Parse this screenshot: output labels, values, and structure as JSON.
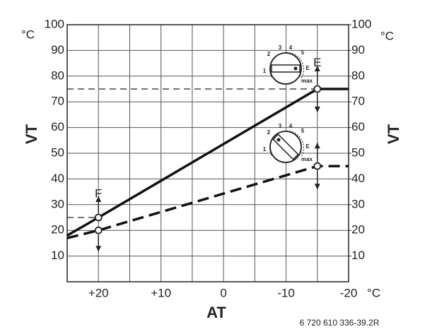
{
  "chart_data": {
    "type": "line",
    "x_label": "AT",
    "y_label": "VT",
    "y2_label": "VT",
    "y_unit": "°C",
    "y2_unit": "°C",
    "x_unit": "°C",
    "xlim": [
      25,
      -20
    ],
    "ylim": [
      0,
      100
    ],
    "y2lim": [
      0,
      100
    ],
    "xticks": [
      {
        "value": 20,
        "label": "+20"
      },
      {
        "value": 10,
        "label": "+10"
      },
      0,
      -10,
      -20
    ],
    "x_minor_ticks": [
      15,
      5,
      -5,
      -15
    ],
    "yticks": [
      10,
      20,
      30,
      40,
      50,
      60,
      70,
      80,
      90,
      100
    ],
    "y2ticks": [
      10,
      20,
      30,
      40,
      50,
      60,
      70,
      80,
      90,
      100
    ],
    "grid": true,
    "series": [
      {
        "x": [
          25,
          20,
          -15,
          -20
        ],
        "values": [
          18,
          25,
          75,
          75
        ],
        "color": "#111111",
        "dash": false,
        "markers": [
          1,
          2
        ]
      },
      {
        "x": [
          25,
          20,
          -15,
          -20
        ],
        "values": [
          17,
          20,
          45,
          45
        ],
        "color": "#111111",
        "dash": true,
        "markers": [
          1,
          2
        ]
      }
    ],
    "reference_lines": [
      {
        "y": 75,
        "x": [
          25,
          -15
        ]
      },
      {
        "y": 25,
        "x": [
          25,
          20
        ]
      }
    ],
    "annotations": [
      {
        "text": "F",
        "x": 20,
        "y": 34
      },
      {
        "text": "E",
        "x": -15,
        "y": 85
      }
    ],
    "dials": [
      {
        "labels": [
          "1",
          "2",
          "3",
          "4",
          "5",
          "E",
          "max"
        ]
      },
      {
        "labels": [
          "1",
          "2",
          "3",
          "4",
          "5",
          "E",
          "max"
        ]
      }
    ],
    "figure_code": "6 720 610 336-39.2R"
  }
}
